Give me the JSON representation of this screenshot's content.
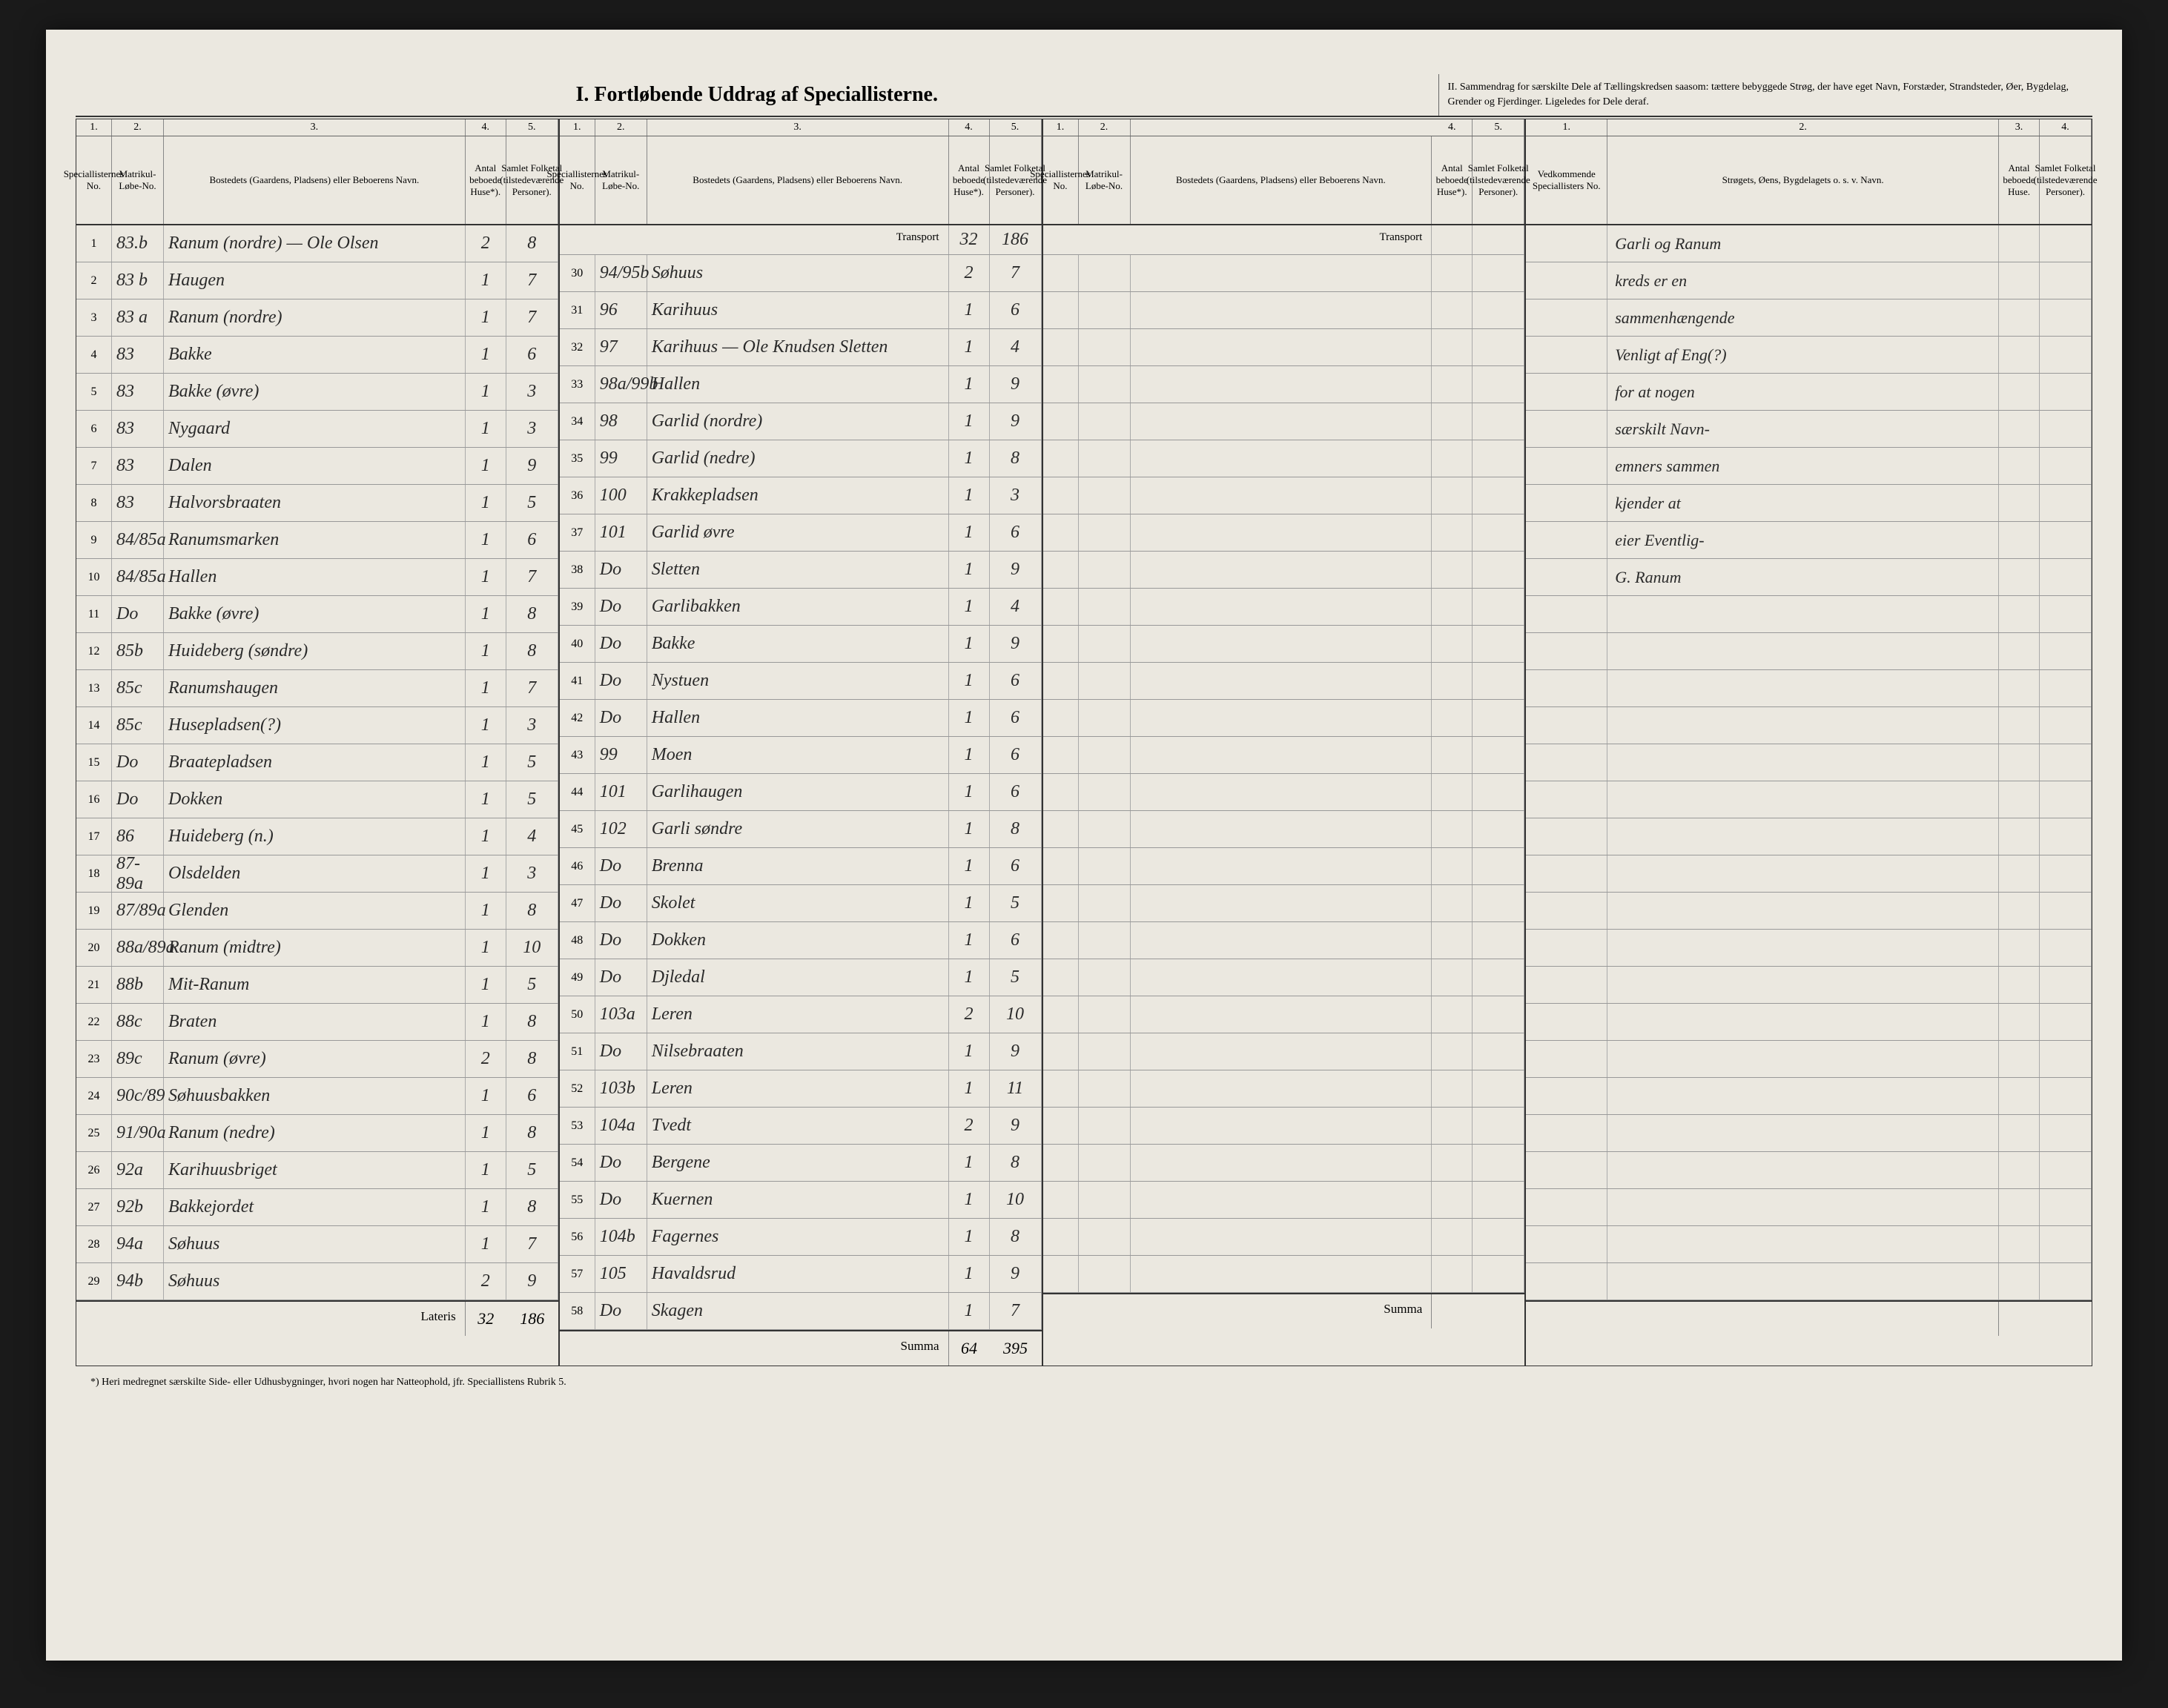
{
  "title_main": "I.  Fortløbende Uddrag af Speciallisterne.",
  "title_sub": "II.  Sammendrag for særskilte Dele af Tællingskredsen saasom: tættere bebyggede Strøg, der have eget Navn, Forstæder, Strandsteder, Øer, Bygdelag, Grender og Fjerdinger. Ligeledes for Dele deraf.",
  "col_numbers_abc": [
    "1.",
    "2.",
    "3.",
    "4.",
    "5."
  ],
  "col_numbers_d": [
    "1.",
    "2.",
    "3.",
    "4."
  ],
  "head": {
    "c1": "Speciallisternes No.",
    "c2": "Matrikul-Løbe-No.",
    "c3": "Bostedets (Gaardens, Pladsens) eller Beboerens Navn.",
    "c4": "Antal beboede Huse*).",
    "c5": "Samlet Folketal (tilstedeværende Personer).",
    "d1": "Vedkommende Speciallisters No.",
    "d2": "Strøgets, Øens, Bygdelagets o. s. v. Navn.",
    "d3": "Antal beboede Huse.",
    "d4": "Samlet Folketal (tilstedeværende Personer)."
  },
  "transport_label": "Transport",
  "lateris_label": "Lateris",
  "summa_label": "Summa",
  "transport_b_c4": "32",
  "transport_b_c5": "186",
  "section_a_rows": [
    {
      "no": "1",
      "mat": "83.b",
      "name": "Ranum (nordre) — Ole Olsen",
      "h": "2",
      "f": "8"
    },
    {
      "no": "2",
      "mat": "83 b",
      "name": "Haugen",
      "h": "1",
      "f": "7"
    },
    {
      "no": "3",
      "mat": "83 a",
      "name": "Ranum (nordre)",
      "h": "1",
      "f": "7"
    },
    {
      "no": "4",
      "mat": "83",
      "name": "Bakke",
      "h": "1",
      "f": "6"
    },
    {
      "no": "5",
      "mat": "83",
      "name": "Bakke (øvre)",
      "h": "1",
      "f": "3"
    },
    {
      "no": "6",
      "mat": "83",
      "name": "Nygaard",
      "h": "1",
      "f": "3"
    },
    {
      "no": "7",
      "mat": "83",
      "name": "Dalen",
      "h": "1",
      "f": "9"
    },
    {
      "no": "8",
      "mat": "83",
      "name": "Halvorsbraaten",
      "h": "1",
      "f": "5"
    },
    {
      "no": "9",
      "mat": "84/85a",
      "name": "Ranumsmarken",
      "h": "1",
      "f": "6"
    },
    {
      "no": "10",
      "mat": "84/85a",
      "name": "Hallen",
      "h": "1",
      "f": "7"
    },
    {
      "no": "11",
      "mat": "Do",
      "name": "Bakke (øvre)",
      "h": "1",
      "f": "8"
    },
    {
      "no": "12",
      "mat": "85b",
      "name": "Huideberg (søndre)",
      "h": "1",
      "f": "8"
    },
    {
      "no": "13",
      "mat": "85c",
      "name": "Ranumshaugen",
      "h": "1",
      "f": "7"
    },
    {
      "no": "14",
      "mat": "85c",
      "name": "Husepladsen(?)",
      "h": "1",
      "f": "3"
    },
    {
      "no": "15",
      "mat": "Do",
      "name": "Braatepladsen",
      "h": "1",
      "f": "5"
    },
    {
      "no": "16",
      "mat": "Do",
      "name": "Dokken",
      "h": "1",
      "f": "5"
    },
    {
      "no": "17",
      "mat": "86",
      "name": "Huideberg (n.)",
      "h": "1",
      "f": "4"
    },
    {
      "no": "18",
      "mat": "87-89a",
      "name": "Olsdelden",
      "h": "1",
      "f": "3"
    },
    {
      "no": "19",
      "mat": "87/89a",
      "name": "Glenden",
      "h": "1",
      "f": "8"
    },
    {
      "no": "20",
      "mat": "88a/89a",
      "name": "Ranum (midtre)",
      "h": "1",
      "f": "10"
    },
    {
      "no": "21",
      "mat": "88b",
      "name": "Mit-Ranum",
      "h": "1",
      "f": "5"
    },
    {
      "no": "22",
      "mat": "88c",
      "name": "Braten",
      "h": "1",
      "f": "8"
    },
    {
      "no": "23",
      "mat": "89c",
      "name": "Ranum (øvre)",
      "h": "2",
      "f": "8"
    },
    {
      "no": "24",
      "mat": "90c/89",
      "name": "Søhuusbakken",
      "h": "1",
      "f": "6"
    },
    {
      "no": "25",
      "mat": "91/90a",
      "name": "Ranum (nedre)",
      "h": "1",
      "f": "8"
    },
    {
      "no": "26",
      "mat": "92a",
      "name": "Karihuusbriget",
      "h": "1",
      "f": "5"
    },
    {
      "no": "27",
      "mat": "92b",
      "name": "Bakkejordet",
      "h": "1",
      "f": "8"
    },
    {
      "no": "28",
      "mat": "94a",
      "name": "Søhuus",
      "h": "1",
      "f": "7"
    },
    {
      "no": "29",
      "mat": "94b",
      "name": "Søhuus",
      "h": "2",
      "f": "9"
    }
  ],
  "section_a_totals": {
    "h": "32",
    "f": "186"
  },
  "section_b_rows": [
    {
      "no": "30",
      "mat": "94/95b",
      "name": "Søhuus",
      "h": "2",
      "f": "7"
    },
    {
      "no": "31",
      "mat": "96",
      "name": "Karihuus",
      "h": "1",
      "f": "6"
    },
    {
      "no": "32",
      "mat": "97",
      "name": "Karihuus — Ole Knudsen Sletten",
      "h": "1",
      "f": "4"
    },
    {
      "no": "33",
      "mat": "98a/99b",
      "name": "Hallen",
      "h": "1",
      "f": "9"
    },
    {
      "no": "34",
      "mat": "98",
      "name": "Garlid (nordre)",
      "h": "1",
      "f": "9"
    },
    {
      "no": "35",
      "mat": "99",
      "name": "Garlid (nedre)",
      "h": "1",
      "f": "8"
    },
    {
      "no": "36",
      "mat": "100",
      "name": "Krakkepladsen",
      "h": "1",
      "f": "3"
    },
    {
      "no": "37",
      "mat": "101",
      "name": "Garlid øvre",
      "h": "1",
      "f": "6"
    },
    {
      "no": "38",
      "mat": "Do",
      "name": "Sletten",
      "h": "1",
      "f": "9"
    },
    {
      "no": "39",
      "mat": "Do",
      "name": "Garlibakken",
      "h": "1",
      "f": "4"
    },
    {
      "no": "40",
      "mat": "Do",
      "name": "Bakke",
      "h": "1",
      "f": "9"
    },
    {
      "no": "41",
      "mat": "Do",
      "name": "Nystuen",
      "h": "1",
      "f": "6"
    },
    {
      "no": "42",
      "mat": "Do",
      "name": "Hallen",
      "h": "1",
      "f": "6"
    },
    {
      "no": "43",
      "mat": "99",
      "name": "Moen",
      "h": "1",
      "f": "6"
    },
    {
      "no": "44",
      "mat": "101",
      "name": "Garlihaugen",
      "h": "1",
      "f": "6"
    },
    {
      "no": "45",
      "mat": "102",
      "name": "Garli søndre",
      "h": "1",
      "f": "8"
    },
    {
      "no": "46",
      "mat": "Do",
      "name": "Brenna",
      "h": "1",
      "f": "6"
    },
    {
      "no": "47",
      "mat": "Do",
      "name": "Skolet",
      "h": "1",
      "f": "5"
    },
    {
      "no": "48",
      "mat": "Do",
      "name": "Dokken",
      "h": "1",
      "f": "6"
    },
    {
      "no": "49",
      "mat": "Do",
      "name": "Djledal",
      "h": "1",
      "f": "5"
    },
    {
      "no": "50",
      "mat": "103a",
      "name": "Leren",
      "h": "2",
      "f": "10"
    },
    {
      "no": "51",
      "mat": "Do",
      "name": "Nilsebraaten",
      "h": "1",
      "f": "9"
    },
    {
      "no": "52",
      "mat": "103b",
      "name": "Leren",
      "h": "1",
      "f": "11"
    },
    {
      "no": "53",
      "mat": "104a",
      "name": "Tvedt",
      "h": "2",
      "f": "9"
    },
    {
      "no": "54",
      "mat": "Do",
      "name": "Bergene",
      "h": "1",
      "f": "8"
    },
    {
      "no": "55",
      "mat": "Do",
      "name": "Kuernen",
      "h": "1",
      "f": "10"
    },
    {
      "no": "56",
      "mat": "104b",
      "name": "Fagernes",
      "h": "1",
      "f": "8"
    },
    {
      "no": "57",
      "mat": "105",
      "name": "Havaldsrud",
      "h": "1",
      "f": "9"
    },
    {
      "no": "58",
      "mat": "Do",
      "name": "Skagen",
      "h": "1",
      "f": "7"
    }
  ],
  "section_b_totals": {
    "h": "64",
    "f": "395"
  },
  "section_d_notes": [
    "Garli og Ranum",
    "kreds er en",
    "sammenhængende",
    "Venligt af Eng(?)",
    "for at nogen",
    "særskilt Navn-",
    "emners sammen",
    "kjender at",
    "eier Eventlig-",
    "G. Ranum"
  ],
  "footnote": "*) Heri medregnet særskilte Side- eller Udhusbygninger, hvori nogen har Natteophold, jfr. Speciallistens Rubrik 5."
}
